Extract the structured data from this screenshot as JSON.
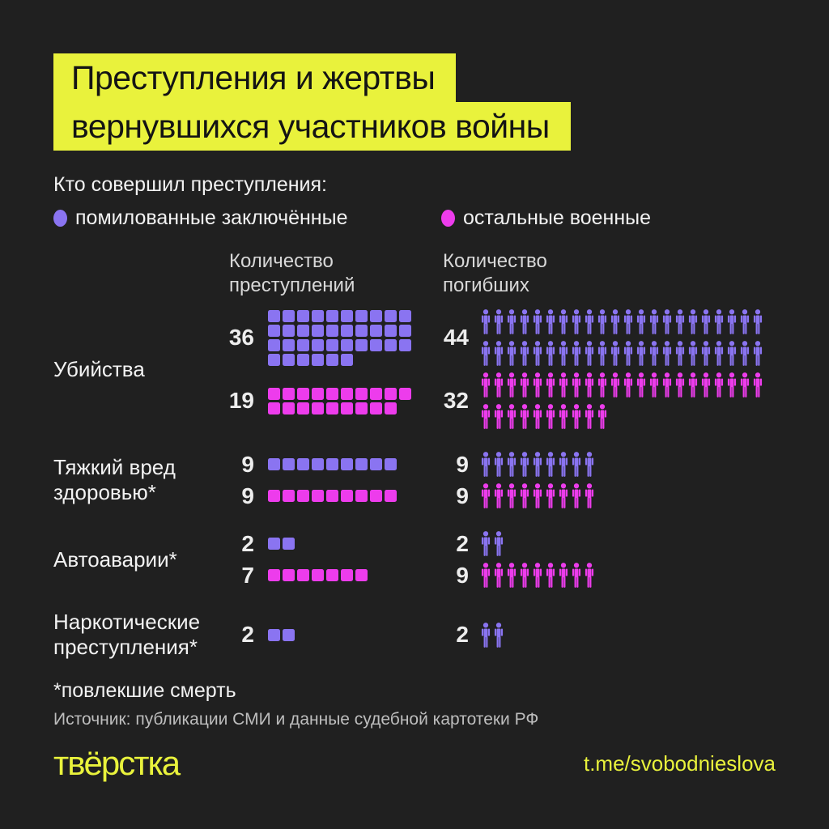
{
  "colors": {
    "background": "#202020",
    "yellow": "#e9f23c",
    "purple": "#8a74f1",
    "pink": "#ed3cec",
    "text": "#f2f2f2",
    "muted": "#bdbdbd",
    "header": "#d8d8d8",
    "title_text": "#141414"
  },
  "title": {
    "line1": "Преступления и жертвы",
    "line2": "вернувшихся участников войны"
  },
  "legend": {
    "heading": "Кто совершил преступления:",
    "items": [
      {
        "label": "помилованные заключённые",
        "color": "#8a74f1"
      },
      {
        "label": "остальные военные",
        "color": "#ed3cec"
      }
    ]
  },
  "chart_data": {
    "type": "pictogram",
    "units": {
      "crimes": "square",
      "deaths": "person-icon"
    },
    "per_row": {
      "crimes": 10,
      "deaths": 22
    },
    "columns": [
      "Количество преступлений",
      "Количество погибших"
    ],
    "rows": [
      {
        "category": "Убийства",
        "series": [
          {
            "name": "помилованные заключённые",
            "crimes": 36,
            "deaths": 44
          },
          {
            "name": "остальные военные",
            "crimes": 19,
            "deaths": 32
          }
        ]
      },
      {
        "category": "Тяжкий вред здоровью*",
        "series": [
          {
            "name": "помилованные заключённые",
            "crimes": 9,
            "deaths": 9
          },
          {
            "name": "остальные военные",
            "crimes": 9,
            "deaths": 9
          }
        ]
      },
      {
        "category": "Автоаварии*",
        "series": [
          {
            "name": "помилованные заключённые",
            "crimes": 2,
            "deaths": 2
          },
          {
            "name": "остальные военные",
            "crimes": 7,
            "deaths": 9
          }
        ]
      },
      {
        "category": "Наркотические преступления*",
        "series": [
          {
            "name": "помилованные заключённые",
            "crimes": 2,
            "deaths": 2
          }
        ]
      }
    ]
  },
  "footnote": "*повлекшие смерть",
  "source": "Источник: публикации СМИ и данные судебной картотеки РФ",
  "footer": {
    "logo_text": "твёрстка",
    "link": "t.me/svobodnieslova"
  }
}
